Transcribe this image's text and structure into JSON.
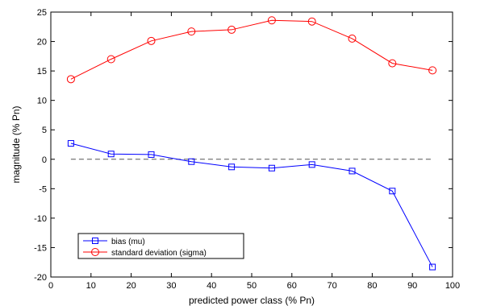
{
  "chart_data": {
    "type": "line",
    "xlabel": "predicted power class (% Pn)",
    "ylabel": "magnitude (% Pn)",
    "xlim": [
      0,
      100
    ],
    "ylim": [
      -20,
      25
    ],
    "xticks": [
      0,
      10,
      20,
      30,
      40,
      50,
      60,
      70,
      80,
      90,
      100
    ],
    "yticks": [
      -20,
      -15,
      -10,
      -5,
      0,
      5,
      10,
      15,
      20,
      25
    ],
    "grid": false,
    "legend_position": "bottom-left",
    "x": [
      5,
      15,
      25,
      35,
      45,
      55,
      65,
      75,
      85,
      95
    ],
    "series": [
      {
        "name": "bias (mu)",
        "color": "#0000ff",
        "marker": "square",
        "values": [
          2.7,
          0.9,
          0.8,
          -0.4,
          -1.3,
          -1.5,
          -0.9,
          -2.0,
          -5.4,
          -18.3
        ]
      },
      {
        "name": "standard deviation (sigma)",
        "color": "#ff0000",
        "marker": "circle",
        "values": [
          13.6,
          17.0,
          20.1,
          21.7,
          22.0,
          23.6,
          23.4,
          20.5,
          16.3,
          15.1
        ]
      }
    ],
    "reference_line": {
      "y": 0,
      "style": "dashed",
      "color": "#555555"
    }
  }
}
